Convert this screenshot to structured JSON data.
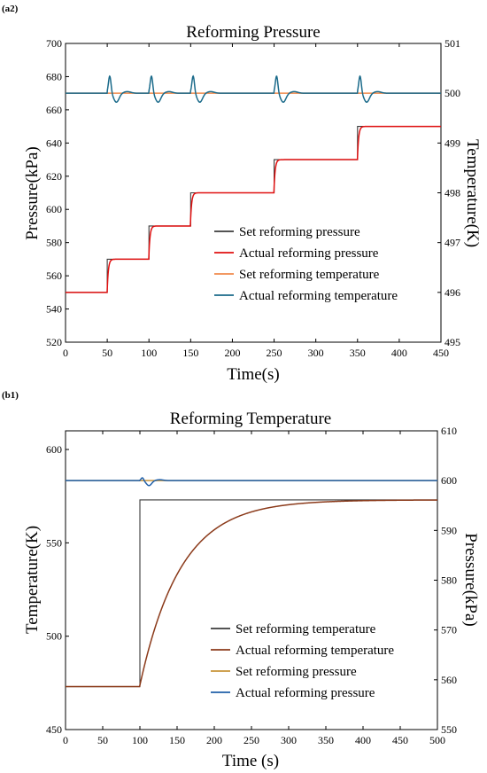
{
  "chart_data": [
    {
      "panel_label": "(a2)",
      "type": "line",
      "title": "Reforming Pressure",
      "xlabel": "Time(s)",
      "ylabel": "Pressure(kPa)",
      "ylabel_right": "Temperature(K)",
      "xlim": [
        0,
        450
      ],
      "ylim": [
        520,
        700
      ],
      "ylim_right": [
        495,
        501
      ],
      "xticks": [
        0,
        50,
        100,
        150,
        200,
        250,
        300,
        350,
        400,
        450
      ],
      "yticks": [
        520,
        540,
        560,
        580,
        600,
        620,
        640,
        660,
        680,
        700
      ],
      "yticks_right": [
        495,
        496,
        497,
        498,
        499,
        500,
        501
      ],
      "legend_position": "lower-right",
      "colors": {
        "set_pressure": "#3b3b3b",
        "actual_pressure": "#e01010",
        "set_temperature": "#f08a4b",
        "actual_temperature": "#1a6a8a"
      },
      "series": [
        {
          "name": "Set reforming pressure",
          "axis": "left",
          "kind": "step",
          "steps": [
            [
              0,
              550
            ],
            [
              50,
              570
            ],
            [
              100,
              590
            ],
            [
              150,
              610
            ],
            [
              250,
              630
            ],
            [
              350,
              650
            ],
            [
              450,
              650
            ]
          ]
        },
        {
          "name": "Actual reforming pressure",
          "axis": "left",
          "kind": "first-order-response",
          "steps": [
            [
              0,
              550
            ],
            [
              50,
              570
            ],
            [
              100,
              590
            ],
            [
              150,
              610
            ],
            [
              250,
              630
            ],
            [
              350,
              650
            ],
            [
              450,
              650
            ]
          ]
        },
        {
          "name": "Set reforming  temperature",
          "axis": "right",
          "kind": "constant",
          "value": 500
        },
        {
          "name": "Actual reforming temperature",
          "axis": "right",
          "kind": "disturbed",
          "value": 500,
          "disturbance_times": [
            50,
            100,
            150,
            250,
            350
          ],
          "peak": 500.35,
          "dip": 499.82
        }
      ]
    },
    {
      "panel_label": "(b1)",
      "type": "line",
      "title": "Reforming Temperature",
      "xlabel": "Time (s)",
      "ylabel": "Temperature(K)",
      "ylabel_right": "Pressure(kPa)",
      "xlim": [
        0,
        500
      ],
      "ylim": [
        450,
        610
      ],
      "ylim_right": [
        550,
        610
      ],
      "xticks": [
        0,
        50,
        100,
        150,
        200,
        250,
        300,
        350,
        400,
        450,
        500
      ],
      "yticks": [
        450,
        500,
        550,
        600
      ],
      "yticks_right": [
        550,
        560,
        570,
        580,
        590,
        600,
        610
      ],
      "legend_position": "lower-right",
      "colors": {
        "set_temperature": "#3b3b3b",
        "actual_temperature": "#8b3a1a",
        "set_pressure": "#c8943a",
        "actual_pressure": "#1f5fa8"
      },
      "series": [
        {
          "name": "Set reforming temperature",
          "axis": "left",
          "kind": "step",
          "steps": [
            [
              0,
              473
            ],
            [
              100,
              573
            ],
            [
              500,
              573
            ]
          ]
        },
        {
          "name": "Actual reforming temperature",
          "axis": "left",
          "kind": "first-order-response",
          "steps": [
            [
              0,
              473
            ],
            [
              100,
              573
            ],
            [
              500,
              573
            ]
          ]
        },
        {
          "name": "Set reforming pressure",
          "axis": "right",
          "kind": "constant",
          "value": 600
        },
        {
          "name": "Actual reforming pressure",
          "axis": "right",
          "kind": "disturbed",
          "value": 600,
          "disturbance_times": [
            100
          ],
          "peak": 600.6,
          "dip": 599.0
        }
      ]
    }
  ]
}
